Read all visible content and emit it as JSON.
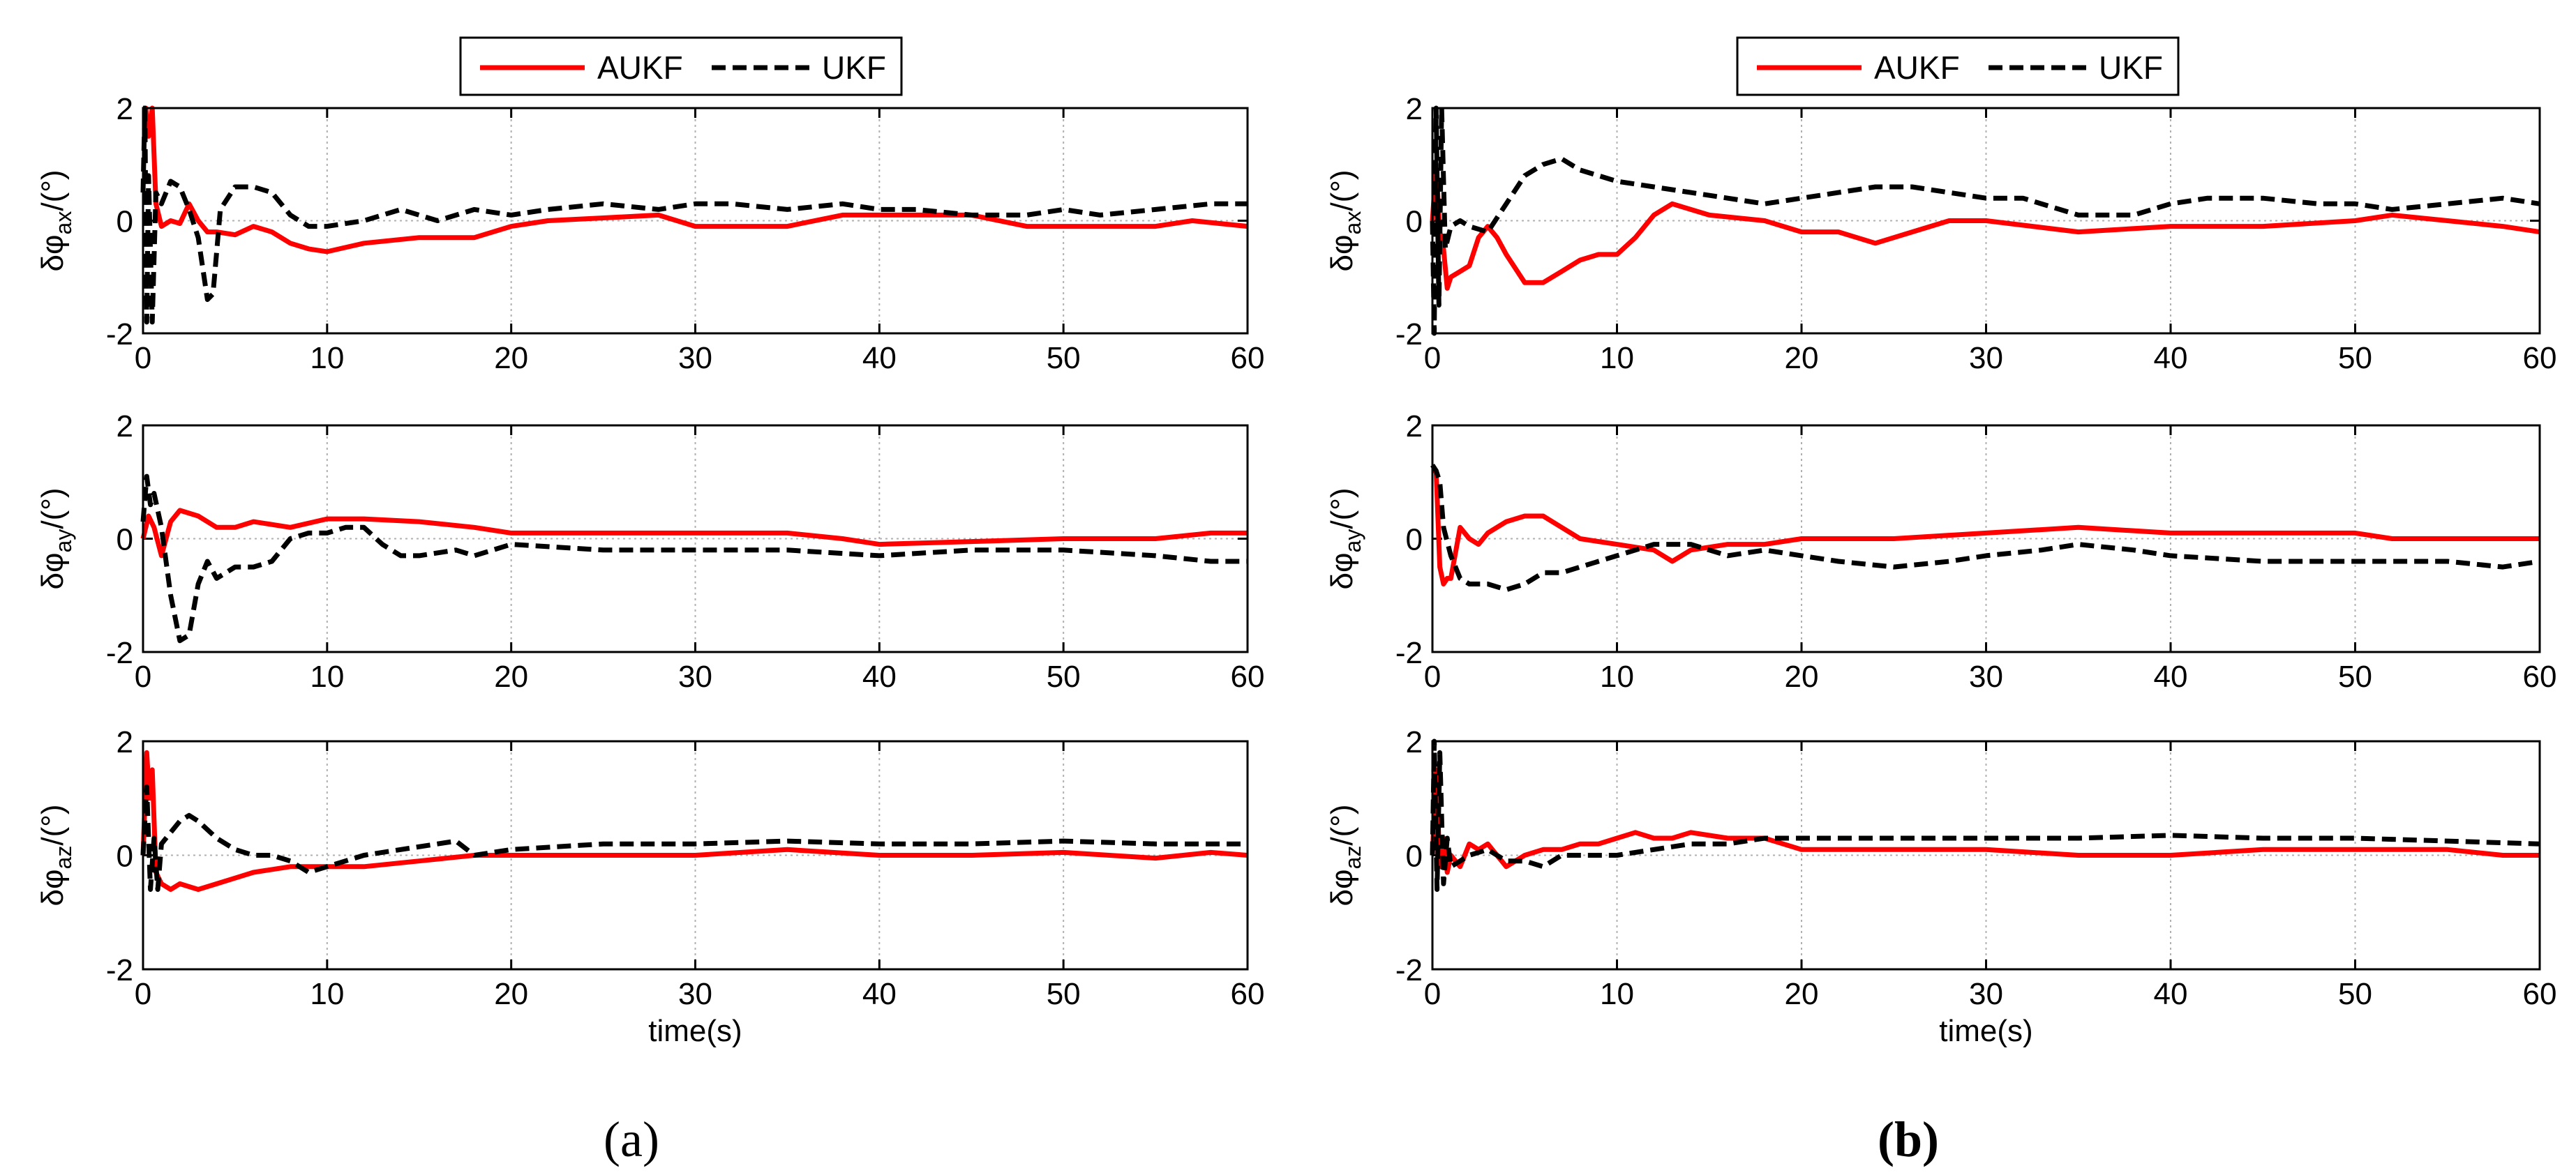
{
  "figure": {
    "panel_labels": [
      "(a)",
      "(b)"
    ],
    "legend": {
      "entries": [
        "AUKF",
        "UKF"
      ]
    },
    "colors": {
      "aukf": "#ff0000",
      "ukf": "#000000",
      "grid": "#b0b0b0",
      "axes": "#000000"
    }
  },
  "chart_data": [
    {
      "type": "line",
      "panel": "a",
      "row": 0,
      "ylabel": "δφax/(°)",
      "ylabel_parts": {
        "base": "δφ",
        "sub": "ax",
        "unit": "/(°)"
      },
      "xlabel": "",
      "xlim": [
        0,
        60
      ],
      "ylim": [
        -2,
        2
      ],
      "xticks": [
        "0",
        "10",
        "20",
        "30",
        "40",
        "50",
        "60"
      ],
      "yticks": [
        "-2",
        "0",
        "2"
      ],
      "grid": true,
      "series": [
        {
          "name": "AUKF",
          "style": "solid",
          "x": [
            0,
            0.15,
            0.3,
            0.5,
            0.7,
            1.0,
            1.5,
            2,
            2.5,
            3,
            3.5,
            4,
            5,
            6,
            7,
            8,
            9,
            10,
            12,
            15,
            18,
            20,
            22,
            25,
            28,
            30,
            32,
            35,
            38,
            40,
            42,
            45,
            48,
            50,
            52,
            55,
            57,
            60
          ],
          "y": [
            2.0,
            2.0,
            1.5,
            2.0,
            0.3,
            -0.1,
            0.0,
            -0.05,
            0.3,
            0.0,
            -0.2,
            -0.2,
            -0.25,
            -0.1,
            -0.2,
            -0.4,
            -0.5,
            -0.55,
            -0.4,
            -0.3,
            -0.3,
            -0.1,
            0.0,
            0.05,
            0.1,
            -0.1,
            -0.1,
            -0.1,
            0.1,
            0.1,
            0.1,
            0.1,
            -0.1,
            -0.1,
            -0.1,
            -0.1,
            0.0,
            -0.1
          ]
        },
        {
          "name": "UKF",
          "style": "dashed",
          "x": [
            0,
            0.1,
            0.2,
            0.3,
            0.5,
            0.7,
            1.0,
            1.5,
            2,
            2.5,
            3,
            3.5,
            3.8,
            4.2,
            5,
            6,
            7,
            8,
            9,
            10,
            12,
            14,
            16,
            18,
            20,
            22,
            25,
            28,
            30,
            32,
            35,
            38,
            40,
            42,
            45,
            48,
            50,
            52,
            55,
            58,
            60
          ],
          "y": [
            0.5,
            2.0,
            -1.8,
            0.8,
            -1.8,
            0.5,
            0.3,
            0.7,
            0.6,
            0.2,
            -0.3,
            -1.4,
            -1.3,
            0.2,
            0.6,
            0.6,
            0.5,
            0.1,
            -0.1,
            -0.1,
            0.0,
            0.2,
            0.0,
            0.2,
            0.1,
            0.2,
            0.3,
            0.2,
            0.3,
            0.3,
            0.2,
            0.3,
            0.2,
            0.2,
            0.1,
            0.1,
            0.2,
            0.1,
            0.2,
            0.3,
            0.3
          ]
        }
      ]
    },
    {
      "type": "line",
      "panel": "a",
      "row": 1,
      "ylabel": "δφay/(°)",
      "ylabel_parts": {
        "base": "δφ",
        "sub": "ay",
        "unit": "/(°)"
      },
      "xlabel": "",
      "xlim": [
        0,
        60
      ],
      "ylim": [
        -2,
        2
      ],
      "xticks": [
        "0",
        "10",
        "20",
        "30",
        "40",
        "50",
        "60"
      ],
      "yticks": [
        "-2",
        "0",
        "2"
      ],
      "grid": true,
      "series": [
        {
          "name": "AUKF",
          "style": "solid",
          "x": [
            0,
            0.3,
            0.6,
            1.0,
            1.5,
            2,
            3,
            4,
            5,
            6,
            8,
            10,
            12,
            15,
            18,
            20,
            25,
            30,
            35,
            38,
            40,
            45,
            50,
            55,
            58,
            60
          ],
          "y": [
            0.0,
            0.4,
            0.2,
            -0.3,
            0.3,
            0.5,
            0.4,
            0.2,
            0.2,
            0.3,
            0.2,
            0.35,
            0.35,
            0.3,
            0.2,
            0.1,
            0.1,
            0.1,
            0.1,
            0.0,
            -0.1,
            -0.05,
            0.0,
            0.0,
            0.1,
            0.1
          ]
        },
        {
          "name": "UKF",
          "style": "dashed",
          "x": [
            0,
            0.2,
            0.4,
            0.6,
            1.0,
            1.5,
            2,
            2.5,
            3,
            3.5,
            4,
            5,
            6,
            7,
            8,
            9,
            10,
            11,
            12,
            13,
            14,
            15,
            17,
            18,
            20,
            25,
            30,
            35,
            40,
            45,
            50,
            55,
            58,
            60
          ],
          "y": [
            0.3,
            1.1,
            0.6,
            0.8,
            0.2,
            -1.0,
            -1.8,
            -1.7,
            -0.8,
            -0.4,
            -0.7,
            -0.5,
            -0.5,
            -0.4,
            0.0,
            0.1,
            0.1,
            0.2,
            0.2,
            -0.1,
            -0.3,
            -0.3,
            -0.2,
            -0.3,
            -0.1,
            -0.2,
            -0.2,
            -0.2,
            -0.3,
            -0.2,
            -0.2,
            -0.3,
            -0.4,
            -0.4
          ]
        }
      ]
    },
    {
      "type": "line",
      "panel": "a",
      "row": 2,
      "ylabel": "δφaz/(°)",
      "ylabel_parts": {
        "base": "δφ",
        "sub": "az",
        "unit": "/(°)"
      },
      "xlabel": "time(s)",
      "xlim": [
        0,
        60
      ],
      "ylim": [
        -2,
        2
      ],
      "xticks": [
        "0",
        "10",
        "20",
        "30",
        "40",
        "50",
        "60"
      ],
      "yticks": [
        "-2",
        "0",
        "2"
      ],
      "grid": true,
      "series": [
        {
          "name": "AUKF",
          "style": "solid",
          "x": [
            0,
            0.2,
            0.35,
            0.5,
            0.7,
            1.0,
            1.5,
            2,
            3,
            4,
            5,
            6,
            8,
            10,
            12,
            15,
            18,
            20,
            25,
            30,
            35,
            40,
            45,
            50,
            55,
            58,
            60
          ],
          "y": [
            0.0,
            1.8,
            1.0,
            1.5,
            -0.3,
            -0.5,
            -0.6,
            -0.5,
            -0.6,
            -0.5,
            -0.4,
            -0.3,
            -0.2,
            -0.2,
            -0.2,
            -0.1,
            0.0,
            0.0,
            0.0,
            0.0,
            0.1,
            0.0,
            0.0,
            0.05,
            -0.05,
            0.05,
            0.0
          ]
        },
        {
          "name": "UKF",
          "style": "dashed",
          "x": [
            0,
            0.2,
            0.4,
            0.6,
            0.8,
            1.0,
            1.5,
            2,
            2.5,
            3,
            4,
            5,
            6,
            7,
            8,
            9,
            10,
            12,
            14,
            16,
            17,
            18,
            20,
            25,
            30,
            35,
            40,
            45,
            50,
            55,
            60
          ],
          "y": [
            0.0,
            1.2,
            -0.6,
            0.3,
            -0.6,
            0.2,
            0.4,
            0.6,
            0.7,
            0.6,
            0.3,
            0.1,
            0.0,
            0.0,
            -0.1,
            -0.3,
            -0.2,
            0.0,
            0.1,
            0.2,
            0.25,
            0.0,
            0.1,
            0.2,
            0.2,
            0.25,
            0.2,
            0.2,
            0.25,
            0.2,
            0.2
          ]
        }
      ]
    },
    {
      "type": "line",
      "panel": "b",
      "row": 0,
      "ylabel": "δφax/(°)",
      "ylabel_parts": {
        "base": "δφ",
        "sub": "ax",
        "unit": "/(°)"
      },
      "xlabel": "",
      "xlim": [
        0,
        60
      ],
      "ylim": [
        -2,
        2
      ],
      "xticks": [
        "0",
        "10",
        "20",
        "30",
        "40",
        "50",
        "60"
      ],
      "yticks": [
        "-2",
        "0",
        "2"
      ],
      "grid": true,
      "series": [
        {
          "name": "AUKF",
          "style": "solid",
          "x": [
            0,
            0.2,
            0.4,
            0.6,
            0.8,
            1.0,
            1.5,
            2,
            2.5,
            3,
            3.5,
            4,
            5,
            6,
            7,
            8,
            9,
            10,
            11,
            12,
            13,
            14,
            15,
            18,
            20,
            22,
            24,
            26,
            28,
            30,
            35,
            40,
            45,
            50,
            52,
            55,
            58,
            60
          ],
          "y": [
            0.0,
            1.0,
            -0.2,
            -0.5,
            -1.2,
            -1.0,
            -0.9,
            -0.8,
            -0.3,
            -0.1,
            -0.3,
            -0.6,
            -1.1,
            -1.1,
            -0.9,
            -0.7,
            -0.6,
            -0.6,
            -0.3,
            0.1,
            0.3,
            0.2,
            0.1,
            0.0,
            -0.2,
            -0.2,
            -0.4,
            -0.2,
            0.0,
            0.0,
            -0.2,
            -0.1,
            -0.1,
            0.0,
            0.1,
            0.0,
            -0.1,
            -0.2
          ]
        },
        {
          "name": "UKF",
          "style": "dashed",
          "x": [
            0,
            0.1,
            0.2,
            0.35,
            0.5,
            0.7,
            1.0,
            1.5,
            2,
            3,
            4,
            5,
            6,
            7,
            8,
            10,
            12,
            14,
            16,
            18,
            20,
            22,
            24,
            26,
            28,
            30,
            32,
            35,
            38,
            40,
            42,
            45,
            48,
            50,
            52,
            55,
            58,
            60
          ],
          "y": [
            0.0,
            -2.0,
            2.0,
            -1.5,
            2.0,
            -0.5,
            -0.1,
            0.0,
            -0.1,
            -0.2,
            0.3,
            0.8,
            1.0,
            1.1,
            0.9,
            0.7,
            0.6,
            0.5,
            0.4,
            0.3,
            0.4,
            0.5,
            0.6,
            0.6,
            0.5,
            0.4,
            0.4,
            0.1,
            0.1,
            0.3,
            0.4,
            0.4,
            0.3,
            0.3,
            0.2,
            0.3,
            0.4,
            0.3
          ]
        }
      ]
    },
    {
      "type": "line",
      "panel": "b",
      "row": 1,
      "ylabel": "δφay/(°)",
      "ylabel_parts": {
        "base": "δφ",
        "sub": "ay",
        "unit": "/(°)"
      },
      "xlabel": "",
      "xlim": [
        0,
        60
      ],
      "ylim": [
        -2,
        2
      ],
      "xticks": [
        "0",
        "10",
        "20",
        "30",
        "40",
        "50",
        "60"
      ],
      "yticks": [
        "-2",
        "0",
        "2"
      ],
      "grid": true,
      "series": [
        {
          "name": "AUKF",
          "style": "solid",
          "x": [
            0,
            0.2,
            0.4,
            0.6,
            0.8,
            1.0,
            1.5,
            2,
            2.5,
            3,
            4,
            5,
            6,
            7,
            8,
            10,
            12,
            13,
            14,
            16,
            18,
            20,
            25,
            30,
            35,
            40,
            45,
            50,
            52,
            55,
            60
          ],
          "y": [
            1.2,
            1.2,
            -0.5,
            -0.8,
            -0.7,
            -0.7,
            0.2,
            0.0,
            -0.1,
            0.1,
            0.3,
            0.4,
            0.4,
            0.2,
            0.0,
            -0.1,
            -0.2,
            -0.4,
            -0.2,
            -0.1,
            -0.1,
            0.0,
            0.0,
            0.1,
            0.2,
            0.1,
            0.1,
            0.1,
            0.0,
            0.0,
            0.0
          ]
        },
        {
          "name": "UKF",
          "style": "dashed",
          "x": [
            0,
            0.2,
            0.4,
            0.6,
            1.0,
            1.5,
            2,
            3,
            4,
            5,
            6,
            7,
            8,
            10,
            12,
            14,
            16,
            18,
            20,
            22,
            25,
            28,
            30,
            33,
            35,
            38,
            40,
            45,
            50,
            55,
            58,
            60
          ],
          "y": [
            1.3,
            1.2,
            1.0,
            0.2,
            -0.3,
            -0.7,
            -0.8,
            -0.8,
            -0.9,
            -0.8,
            -0.6,
            -0.6,
            -0.5,
            -0.3,
            -0.1,
            -0.1,
            -0.3,
            -0.2,
            -0.3,
            -0.4,
            -0.5,
            -0.4,
            -0.3,
            -0.2,
            -0.1,
            -0.2,
            -0.3,
            -0.4,
            -0.4,
            -0.4,
            -0.5,
            -0.4
          ]
        }
      ]
    },
    {
      "type": "line",
      "panel": "b",
      "row": 2,
      "ylabel": "δφaz/(°)",
      "ylabel_parts": {
        "base": "δφ",
        "sub": "az",
        "unit": "/(°)"
      },
      "xlabel": "time(s)",
      "xlim": [
        0,
        60
      ],
      "ylim": [
        -2,
        2
      ],
      "xticks": [
        "0",
        "10",
        "20",
        "30",
        "40",
        "50",
        "60"
      ],
      "yticks": [
        "-2",
        "0",
        "2"
      ],
      "grid": true,
      "series": [
        {
          "name": "AUKF",
          "style": "solid",
          "x": [
            0,
            0.2,
            0.4,
            0.6,
            0.8,
            1.0,
            1.5,
            2,
            2.5,
            3,
            4,
            5,
            6,
            7,
            8,
            9,
            10,
            11,
            12,
            13,
            14,
            16,
            18,
            20,
            25,
            30,
            35,
            40,
            45,
            50,
            55,
            58,
            60
          ],
          "y": [
            0.0,
            1.5,
            -0.2,
            0.3,
            -0.3,
            0.0,
            -0.2,
            0.2,
            0.1,
            0.2,
            -0.2,
            0.0,
            0.1,
            0.1,
            0.2,
            0.2,
            0.3,
            0.4,
            0.3,
            0.3,
            0.4,
            0.3,
            0.3,
            0.1,
            0.1,
            0.1,
            0.0,
            0.0,
            0.1,
            0.1,
            0.1,
            0.0,
            0.0
          ]
        },
        {
          "name": "UKF",
          "style": "dashed",
          "x": [
            0,
            0.1,
            0.25,
            0.4,
            0.6,
            0.8,
            1.0,
            1.5,
            2,
            3,
            4,
            5,
            6,
            7,
            8,
            10,
            12,
            14,
            16,
            18,
            20,
            25,
            30,
            35,
            40,
            45,
            50,
            55,
            60
          ],
          "y": [
            0.0,
            2.0,
            -0.6,
            1.8,
            -0.5,
            0.3,
            -0.2,
            -0.1,
            0.0,
            0.1,
            -0.1,
            -0.1,
            -0.2,
            0.0,
            0.0,
            0.0,
            0.1,
            0.2,
            0.2,
            0.3,
            0.3,
            0.3,
            0.3,
            0.3,
            0.35,
            0.3,
            0.3,
            0.25,
            0.2
          ]
        }
      ]
    }
  ]
}
